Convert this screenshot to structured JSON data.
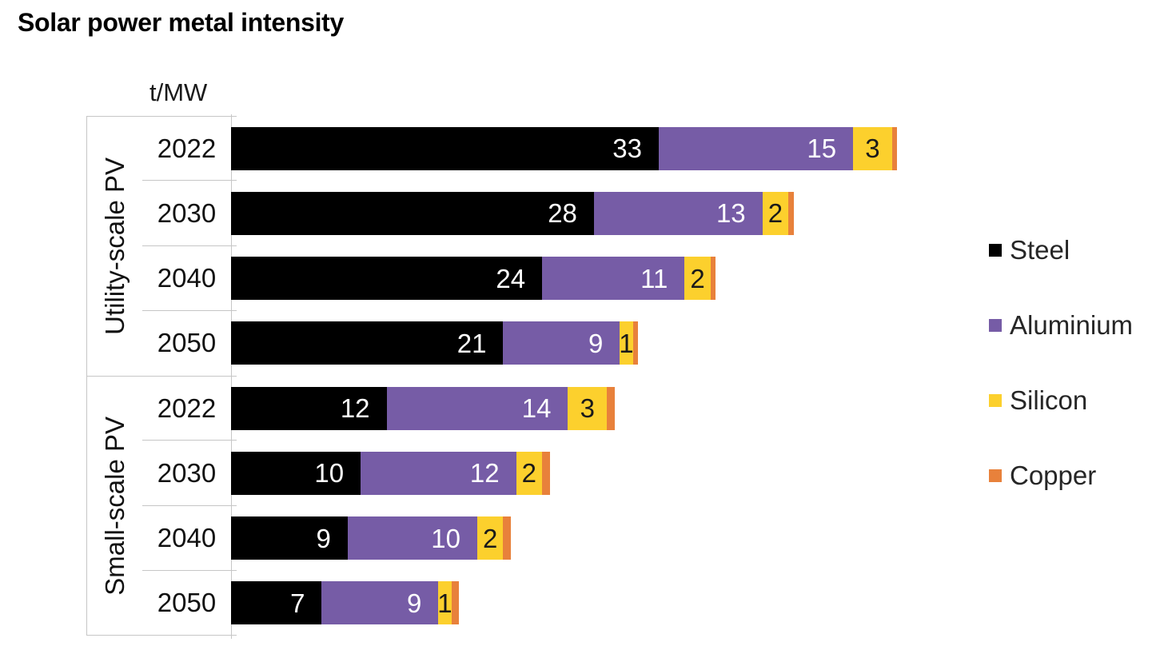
{
  "title": "Solar power metal intensity",
  "chart_data": {
    "type": "bar",
    "orientation": "horizontal",
    "stacked": true,
    "unit": "t/MW",
    "axis_max": 52,
    "grid": false,
    "legend_position": "right",
    "series": [
      {
        "name": "Steel",
        "color": "#000000",
        "label_color": "#ffffff",
        "label_align": "end"
      },
      {
        "name": "Aluminium",
        "color": "#765CA6",
        "label_color": "#ffffff",
        "label_align": "end"
      },
      {
        "name": "Silicon",
        "color": "#FCD02D",
        "label_color": "#1a1a1a",
        "label_align": "center"
      },
      {
        "name": "Copper",
        "color": "#E8813B",
        "label_color": null,
        "label_align": null
      }
    ],
    "groups": [
      {
        "label": "Utility-scale PV",
        "rows": [
          {
            "year": "2022",
            "values": [
              33,
              15,
              3,
              0.4
            ],
            "labels": [
              "33",
              "15",
              "3",
              ""
            ]
          },
          {
            "year": "2030",
            "values": [
              28,
              13,
              2,
              0.4
            ],
            "labels": [
              "28",
              "13",
              "2",
              ""
            ]
          },
          {
            "year": "2040",
            "values": [
              24,
              11,
              2,
              0.4
            ],
            "labels": [
              "24",
              "11",
              "2",
              ""
            ]
          },
          {
            "year": "2050",
            "values": [
              21,
              9,
              1,
              0.4
            ],
            "labels": [
              "21",
              "9",
              "1",
              ""
            ]
          }
        ]
      },
      {
        "label": "Small-scale PV",
        "rows": [
          {
            "year": "2022",
            "values": [
              12,
              14,
              3,
              0.6
            ],
            "labels": [
              "12",
              "14",
              "3",
              ""
            ]
          },
          {
            "year": "2030",
            "values": [
              10,
              12,
              2,
              0.6
            ],
            "labels": [
              "10",
              "12",
              "2",
              ""
            ]
          },
          {
            "year": "2040",
            "values": [
              9,
              10,
              2,
              0.6
            ],
            "labels": [
              "9",
              "10",
              "2",
              ""
            ]
          },
          {
            "year": "2050",
            "values": [
              7,
              9,
              1,
              0.6
            ],
            "labels": [
              "7",
              "9",
              "1",
              ""
            ]
          }
        ]
      }
    ]
  },
  "legend": {
    "items": [
      "Steel",
      "Aluminium",
      "Silicon",
      "Copper"
    ]
  }
}
